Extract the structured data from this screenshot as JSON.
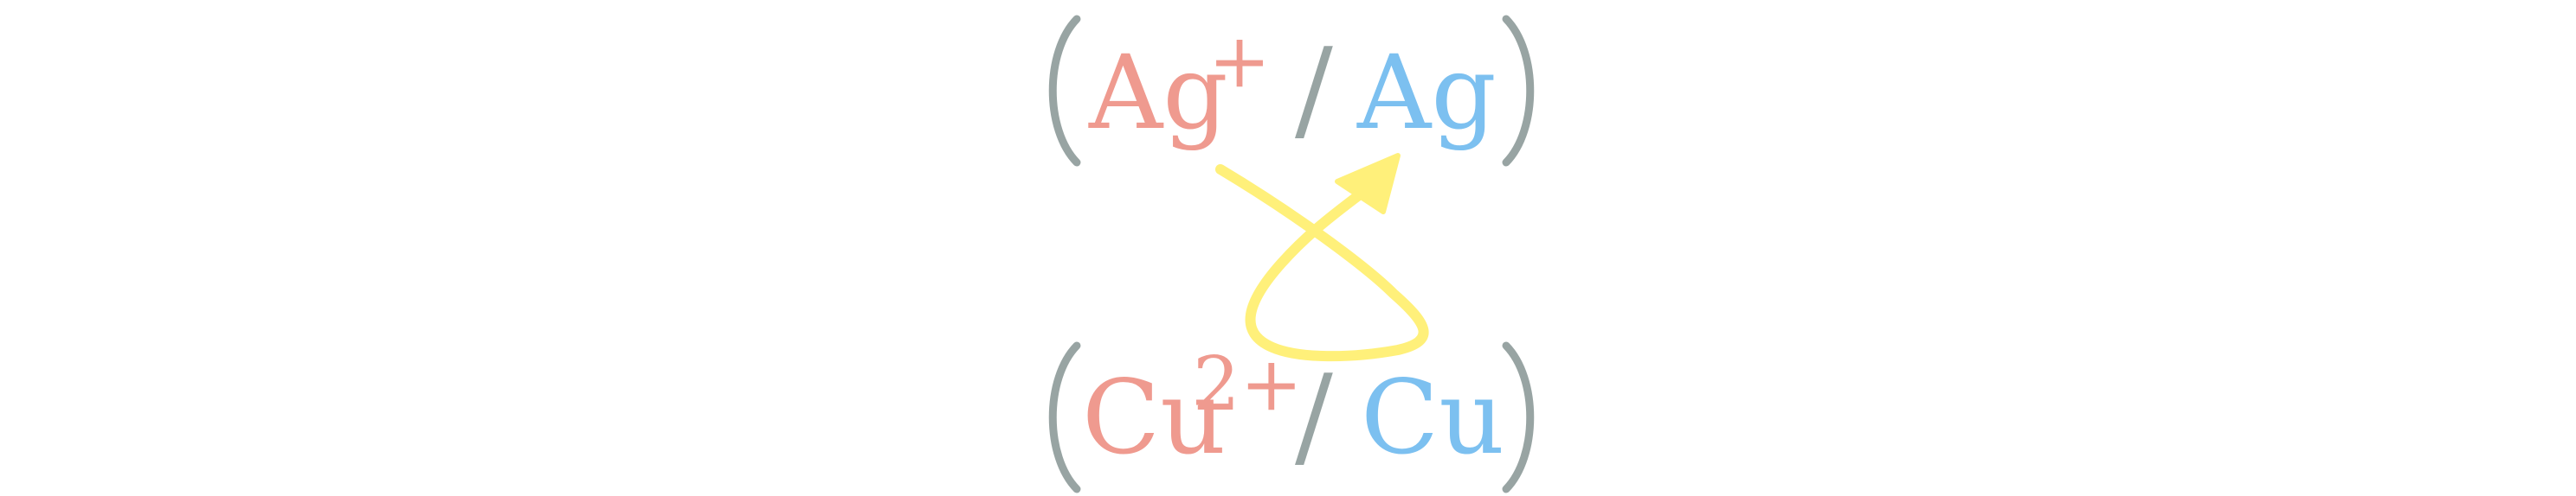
{
  "couples": {
    "top": {
      "oxidant_symbol": "Ag",
      "oxidant_charge": "+",
      "separator": "/",
      "reductant_symbol": "Ag"
    },
    "bottom": {
      "oxidant_symbol": "Cu",
      "oxidant_charge": "2+",
      "separator": "/",
      "reductant_symbol": "Cu"
    }
  },
  "brackets": {
    "open": "(",
    "close": ")"
  },
  "colors": {
    "oxidant": "#ef9a8f",
    "reductant": "#7cc0f0",
    "bracket": "#98a4a3",
    "arrow": "#fff07a"
  },
  "arrow_icon": "crossed-loop-arrow-icon"
}
